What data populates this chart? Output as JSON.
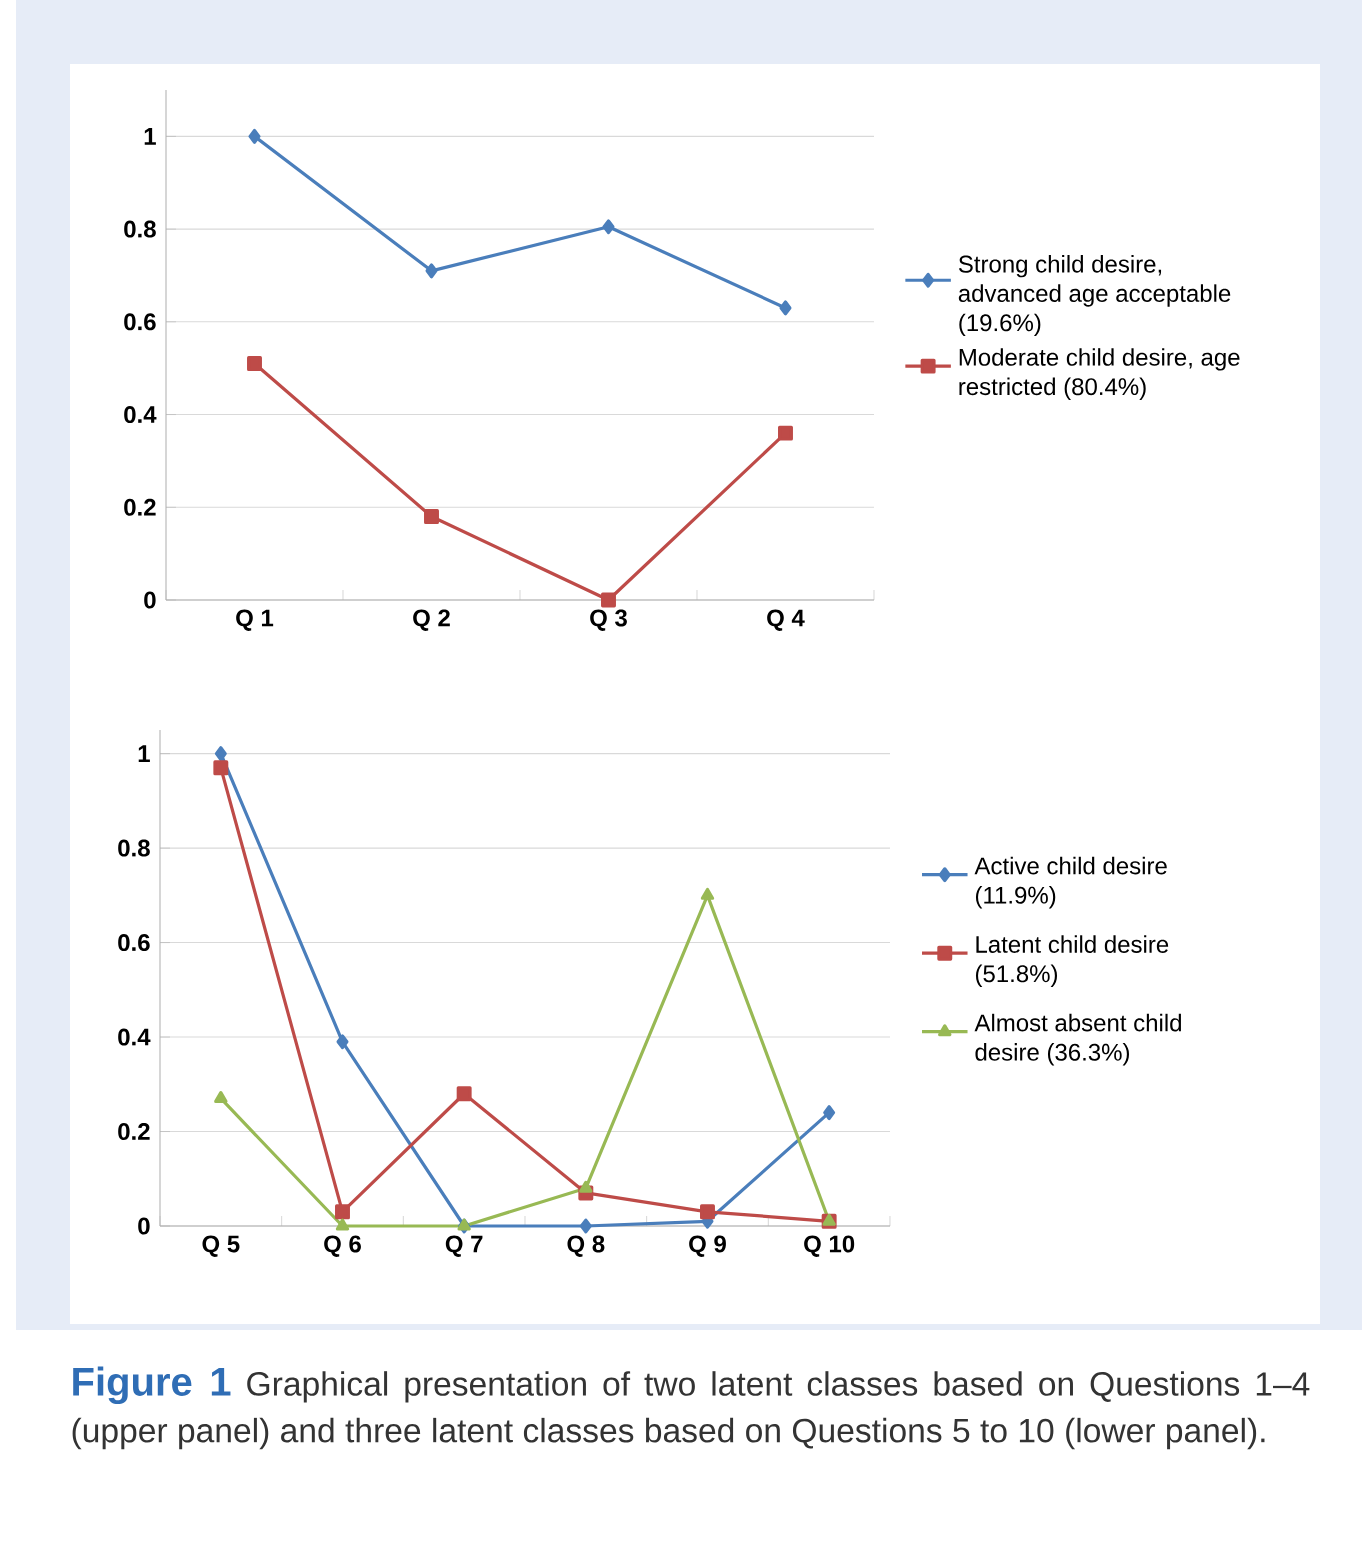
{
  "chart_data": [
    {
      "type": "line",
      "categories": [
        "Q 1",
        "Q 2",
        "Q 3",
        "Q 4"
      ],
      "ylim": [
        0,
        1.1
      ],
      "yticks": [
        0,
        {
          "value": 0.2,
          "label": "0.2"
        },
        {
          "value": 0.4,
          "label": "0.4"
        },
        {
          "value": 0.6,
          "label": "0.6"
        },
        {
          "value": 0.8,
          "label": "0.8"
        },
        1
      ],
      "grid": "y",
      "legend": "right",
      "series": [
        {
          "name": "Strong child desire, advanced age acceptable (19.6%)",
          "color": "#4a7ebb",
          "marker": "diamond",
          "values": [
            1.0,
            0.71,
            0.805,
            0.63
          ]
        },
        {
          "name": "Moderate child desire, age restricted (80.4%)",
          "color": "#be4b48",
          "marker": "square",
          "values": [
            0.51,
            0.18,
            0.0,
            0.36
          ]
        }
      ]
    },
    {
      "type": "line",
      "categories": [
        "Q 5",
        "Q 6",
        "Q 7",
        "Q 8",
        "Q 9",
        "Q 10"
      ],
      "ylim": [
        0,
        1.05
      ],
      "yticks": [
        0,
        {
          "value": 0.2,
          "label": "0.2"
        },
        {
          "value": 0.4,
          "label": "0.4"
        },
        {
          "value": 0.6,
          "label": "0.6"
        },
        {
          "value": 0.8,
          "label": "0.8"
        },
        1
      ],
      "grid": "y",
      "legend": "right",
      "series": [
        {
          "name": "Active child desire (11.9%)",
          "color": "#4a7ebb",
          "marker": "diamond",
          "values": [
            1.0,
            0.39,
            0.0,
            0.0,
            0.01,
            0.24
          ]
        },
        {
          "name": "Latent child desire (51.8%)",
          "color": "#be4b48",
          "marker": "square",
          "values": [
            0.97,
            0.03,
            0.28,
            0.07,
            0.03,
            0.01
          ]
        },
        {
          "name": "Almost absent child desire (36.3%)",
          "color": "#98b954",
          "marker": "triangle",
          "values": [
            0.27,
            0.0,
            0.0,
            0.08,
            0.7,
            0.01
          ]
        }
      ],
      "annotations": [
        "Figure 1",
        "Graphical presentation of two latent classes based on Questions 1–4 (upper panel) and three latent classes based on Questions 5 to 10 (lower panel)."
      ]
    }
  ]
}
